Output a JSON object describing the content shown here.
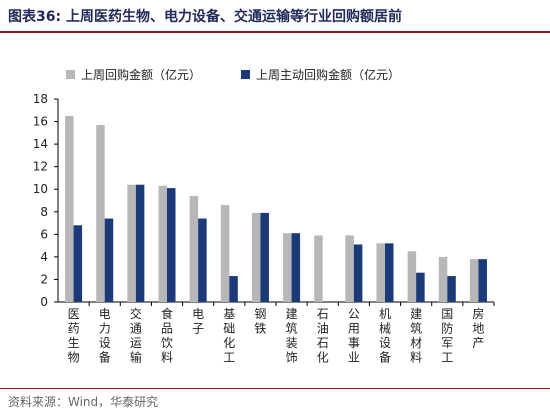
{
  "figure": {
    "title": "图表36:  上周医药生物、电力设备、交通运输等行业回购额居前",
    "source": "资料来源：Wind，华泰研究"
  },
  "colors": {
    "series_total": "#b7b7b7",
    "series_active": "#1a3a7a",
    "title_text": "#1f2a5a",
    "rule": "#8c1a1a"
  },
  "chart_data": {
    "type": "bar",
    "title": "",
    "xlabel": "",
    "ylabel": "",
    "ylim": [
      0,
      18
    ],
    "yticks": [
      0,
      2,
      4,
      6,
      8,
      10,
      12,
      14,
      16,
      18
    ],
    "grid": false,
    "legend_position": "top-left",
    "categories": [
      "医药生物",
      "电力设备",
      "交通运输",
      "食品饮料",
      "电子",
      "基础化工",
      "钢铁",
      "建筑装饰",
      "石油石化",
      "公用事业",
      "机械设备",
      "建筑材料",
      "国防军工",
      "房地产"
    ],
    "series": [
      {
        "name": "上周回购金额（亿元）",
        "values": [
          16.5,
          15.7,
          10.4,
          10.3,
          9.4,
          8.6,
          7.9,
          6.1,
          5.9,
          5.9,
          5.2,
          4.5,
          4.0,
          3.8
        ]
      },
      {
        "name": "上周主动回购金额（亿元）",
        "values": [
          6.8,
          7.4,
          10.4,
          10.1,
          7.4,
          2.3,
          7.9,
          6.1,
          0,
          5.1,
          5.2,
          2.6,
          2.3,
          3.8
        ]
      }
    ]
  }
}
